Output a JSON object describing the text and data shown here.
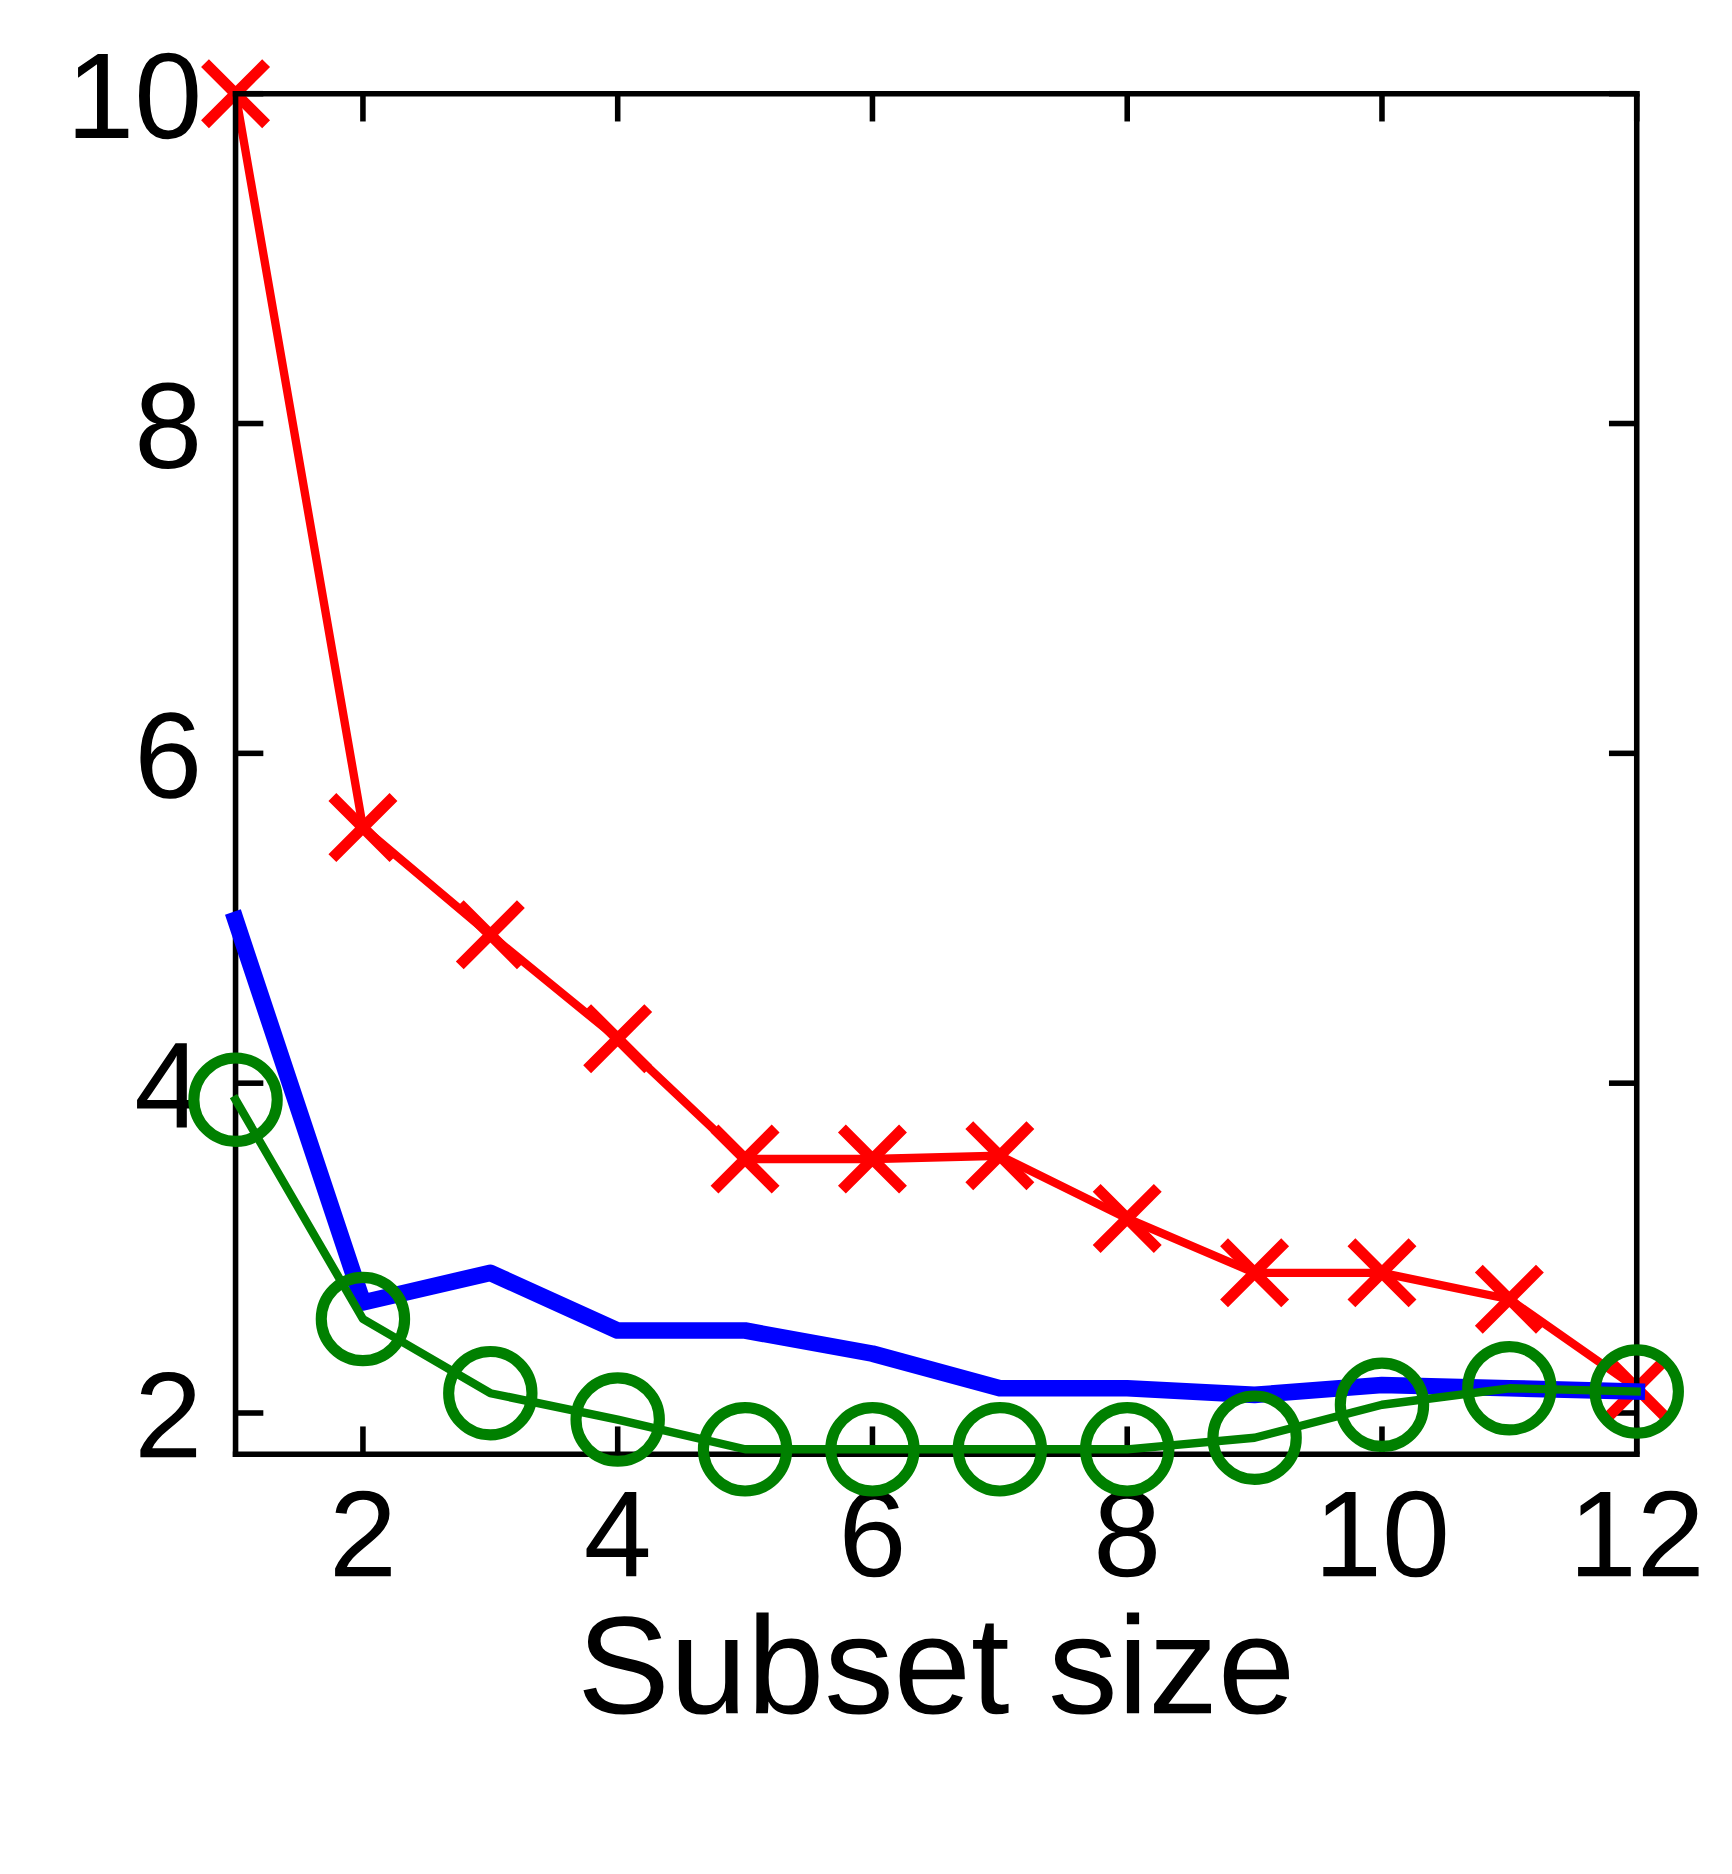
{
  "chart_data": {
    "type": "line",
    "xlabel": "Subset size",
    "x": [
      1,
      2,
      3,
      4,
      5,
      6,
      7,
      8,
      9,
      10,
      11,
      12
    ],
    "series": [
      {
        "color": "#ff0000",
        "marker": "cross",
        "values": [
          10,
          5.55,
          4.9,
          4.27,
          3.54,
          3.54,
          3.56,
          3.18,
          2.85,
          2.85,
          2.69,
          2.15
        ]
      },
      {
        "color": "#0000ff",
        "marker": "none",
        "values": [
          4.99,
          2.67,
          2.85,
          2.5,
          2.5,
          2.36,
          2.15,
          2.15,
          2.11,
          2.17,
          2.15,
          2.13
        ]
      },
      {
        "color": "#008000",
        "marker": "circle",
        "values": [
          3.9,
          2.57,
          2.12,
          1.96,
          1.78,
          1.78,
          1.78,
          1.78,
          1.85,
          2.05,
          2.15,
          2.13
        ]
      }
    ],
    "xlim": [
      1,
      12
    ],
    "xticks": [
      2,
      4,
      6,
      8,
      10,
      12
    ],
    "ylim": [
      1.75,
      10
    ],
    "yticks": [
      2,
      4,
      6,
      8,
      10
    ],
    "grid": false,
    "legend": false,
    "line_style": "solid"
  }
}
